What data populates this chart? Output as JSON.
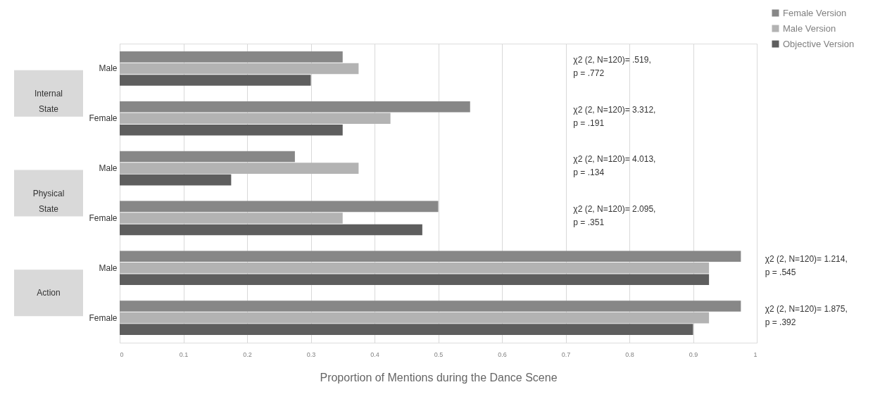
{
  "chart_data": {
    "type": "bar",
    "orientation": "horizontal",
    "xlabel": "Proportion of Mentions during the Dance Scene",
    "categories": [
      "Male",
      "Female",
      "Male",
      "Female",
      "Male",
      "Female"
    ],
    "series": [
      {
        "name": "Female Version",
        "color": "#878787",
        "values": [
          0.35,
          0.55,
          0.275,
          0.5,
          0.975,
          0.975
        ]
      },
      {
        "name": "Male Version",
        "color": "#b3b3b3",
        "values": [
          0.375,
          0.425,
          0.375,
          0.35,
          0.925,
          0.925
        ]
      },
      {
        "name": "Objective Version",
        "color": "#5e5e5e",
        "values": [
          0.3,
          0.35,
          0.175,
          0.475,
          0.925,
          0.9
        ]
      }
    ],
    "xlim": [
      0,
      1
    ],
    "xticks": [
      0,
      0.1,
      0.2,
      0.3,
      0.4,
      0.5,
      0.6,
      0.7,
      0.8,
      0.9,
      1
    ],
    "grid": "x",
    "legend": "top right",
    "annotations": [
      "Internal\nState",
      "Physical\nState",
      "Action",
      "χ2 (2, N=120)= .519,\np = .772",
      "χ2 (2, N=120)= 3.312,\np = .191",
      "χ2 (2, N=120)= 4.013,\np = .134",
      "χ2 (2, N=120)= 2.095,\np = .351",
      "χ2 (2, N=120)= 1.214,\np = .545",
      "χ2 (2, N=120)= 1.875,\np = .392"
    ]
  }
}
